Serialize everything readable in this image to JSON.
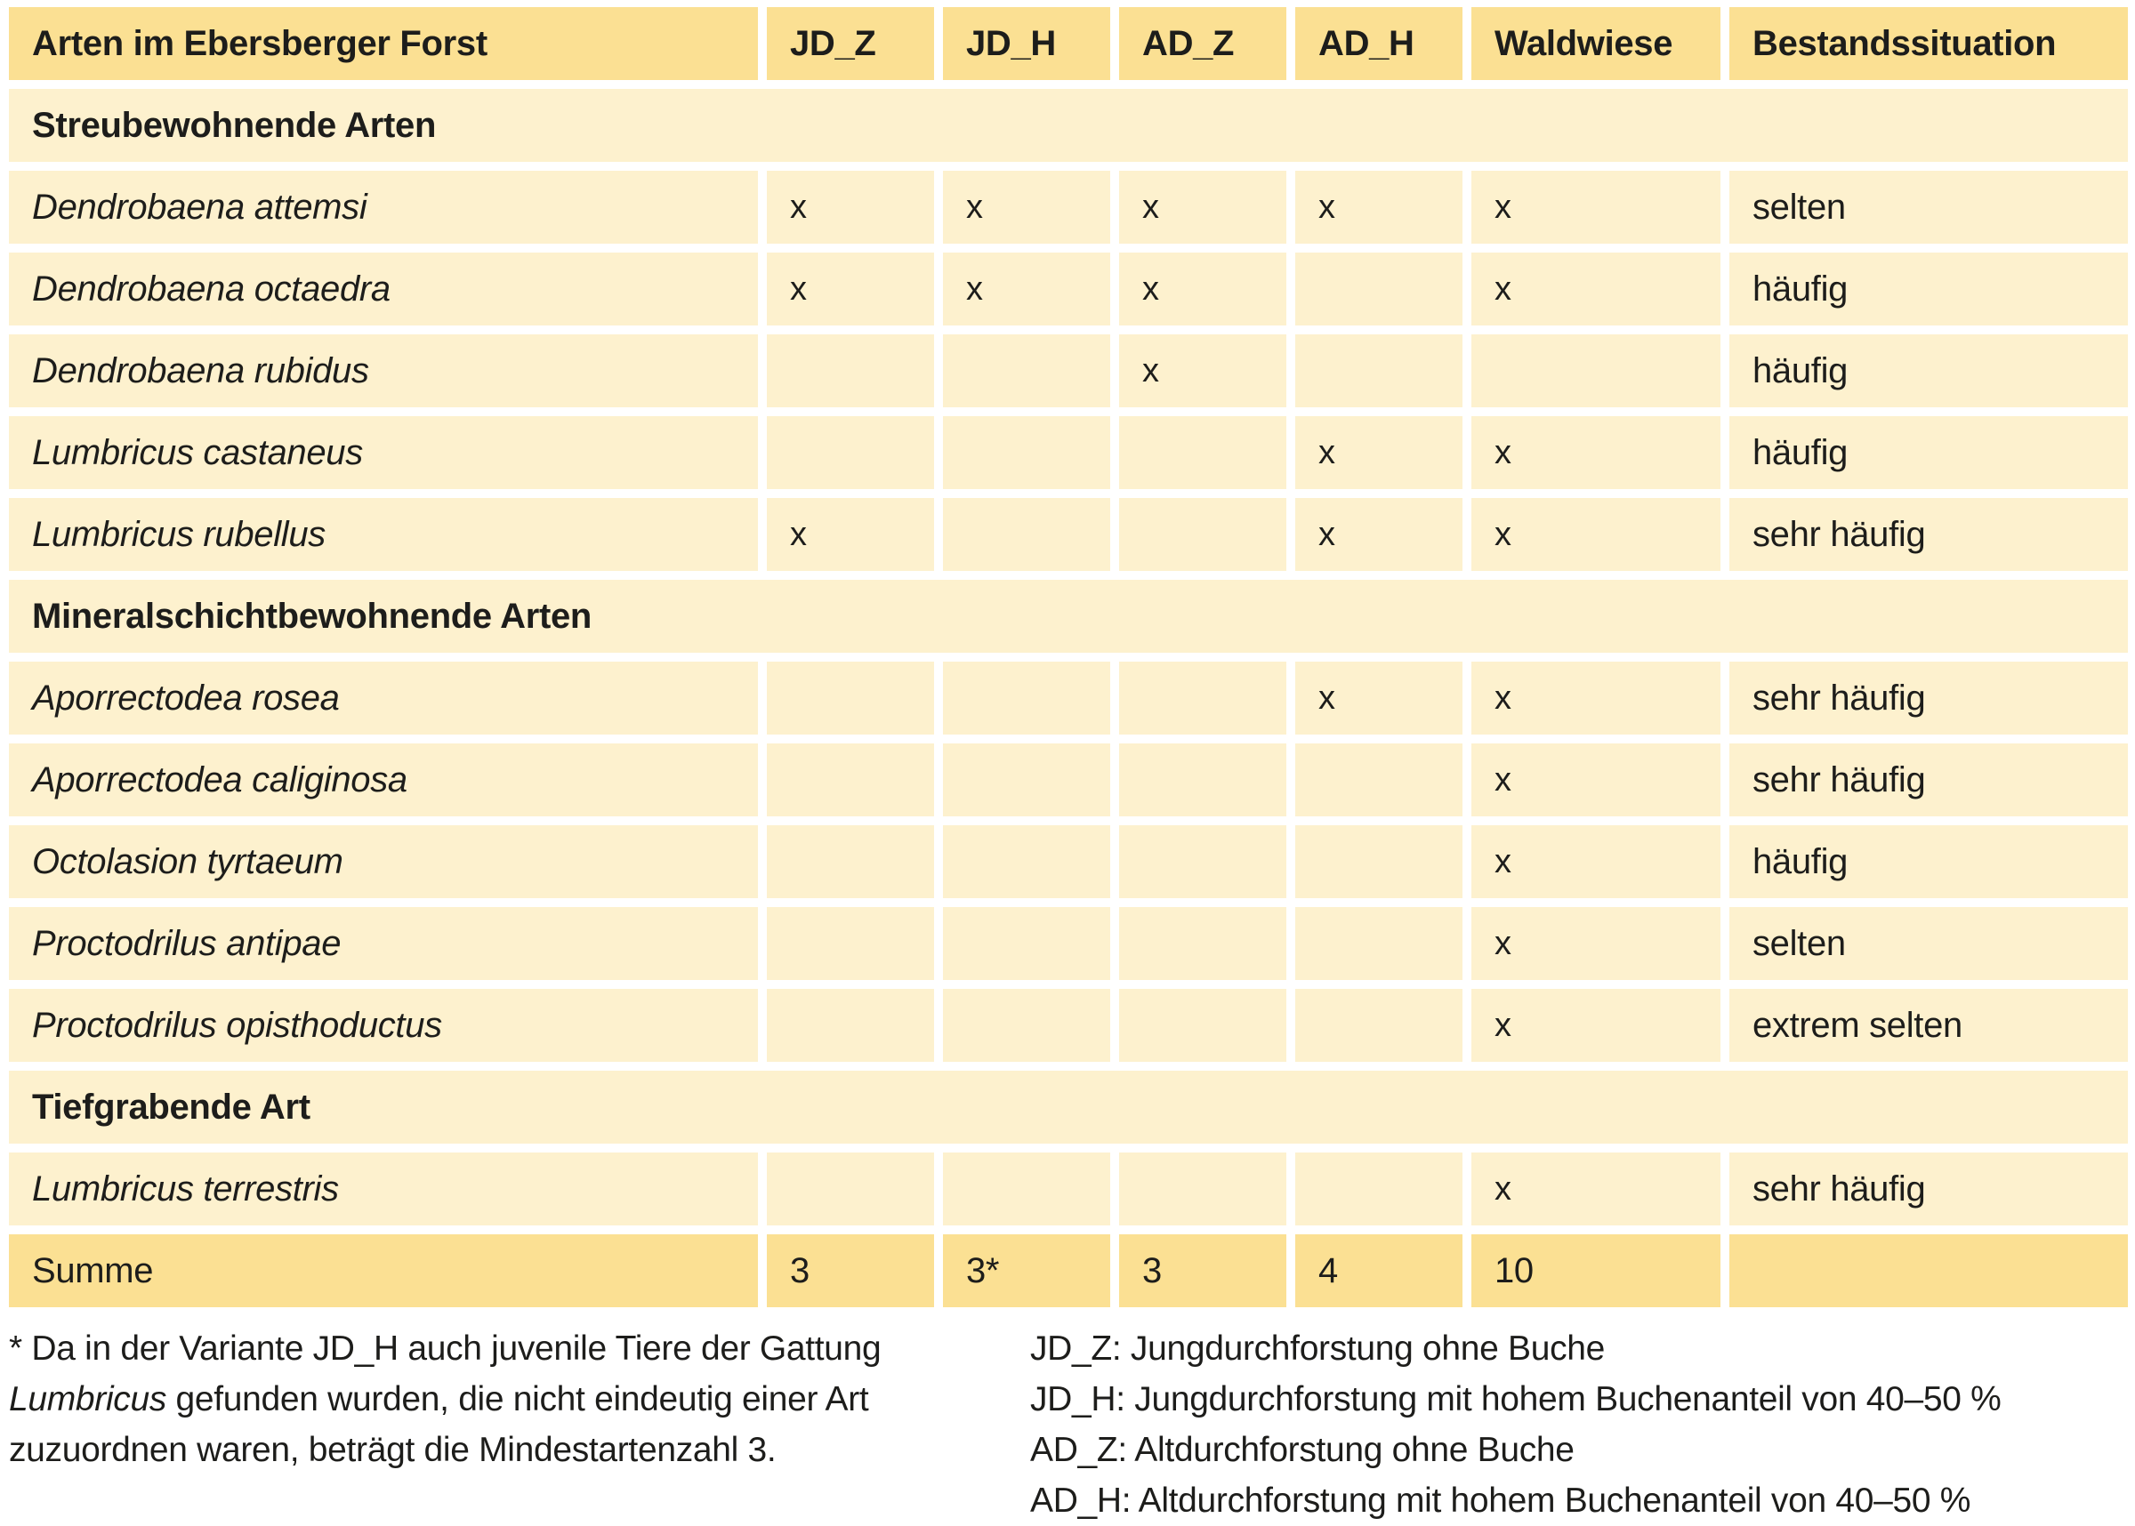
{
  "table": {
    "title_cell": "Arten im Ebersberger Forst",
    "columns": [
      "JD_Z",
      "JD_H",
      "AD_Z",
      "AD_H",
      "Waldwiese",
      "Bestandssituation"
    ],
    "sections": {
      "s1": "Streubewohnende Arten",
      "s2": "Mineralschichtbewohnende Arten",
      "s3": "Tiefgrabende Art"
    },
    "rows": [
      {
        "name": "Dendrobaena attemsi",
        "marks": [
          "x",
          "x",
          "x",
          "x",
          "x"
        ],
        "status": "selten"
      },
      {
        "name": "Dendrobaena octaedra",
        "marks": [
          "x",
          "x",
          "x",
          "",
          "x"
        ],
        "status": "häufig"
      },
      {
        "name": "Dendrobaena rubidus",
        "marks": [
          "",
          "",
          "x",
          "",
          ""
        ],
        "status": "häufig"
      },
      {
        "name": "Lumbricus castaneus",
        "marks": [
          "",
          "",
          "",
          "x",
          "x"
        ],
        "status": "häufig"
      },
      {
        "name": "Lumbricus rubellus",
        "marks": [
          "x",
          "",
          "",
          "x",
          "x"
        ],
        "status": "sehr häufig"
      },
      {
        "name": "Aporrectodea rosea",
        "marks": [
          "",
          "",
          "",
          "x",
          "x"
        ],
        "status": "sehr häufig"
      },
      {
        "name": "Aporrectodea caliginosa",
        "marks": [
          "",
          "",
          "",
          "",
          "x"
        ],
        "status": "sehr häufig"
      },
      {
        "name": "Octolasion tyrtaeum",
        "marks": [
          "",
          "",
          "",
          "",
          "x"
        ],
        "status": "häufig"
      },
      {
        "name": "Proctodrilus antipae",
        "marks": [
          "",
          "",
          "",
          "",
          "x"
        ],
        "status": "selten"
      },
      {
        "name": "Proctodrilus opisthoductus",
        "marks": [
          "",
          "",
          "",
          "",
          "x"
        ],
        "status": "extrem selten"
      },
      {
        "name": "Lumbricus terrestris",
        "marks": [
          "",
          "",
          "",
          "",
          "x"
        ],
        "status": "sehr häufig"
      }
    ],
    "summe": {
      "label": "Summe",
      "values": [
        "3",
        "3*",
        "3",
        "4",
        "10"
      ],
      "status": ""
    }
  },
  "footnote": {
    "line1": "* Da in der Variante JD_H auch juvenile Tiere der Gattung",
    "line2_italic": "Lumbricus",
    "line2_rest": " gefunden wurden, die nicht eindeutig einer Art",
    "line3": "zuzuordnen waren, beträgt die Mindestartenzahl 3."
  },
  "legend": {
    "lines": [
      "JD_Z: Jungdurchforstung ohne Buche",
      "JD_H: Jungdurchforstung mit hohem Buchenanteil von 40–50 %",
      "AD_Z: Altdurchforstung ohne Buche",
      "AD_H: Altdurchforstung mit hohem Buchenanteil von 40–50 %"
    ]
  },
  "colors": {
    "band": "#fbe093",
    "row": "#fdf1ce",
    "text": "#1d1d1b"
  }
}
